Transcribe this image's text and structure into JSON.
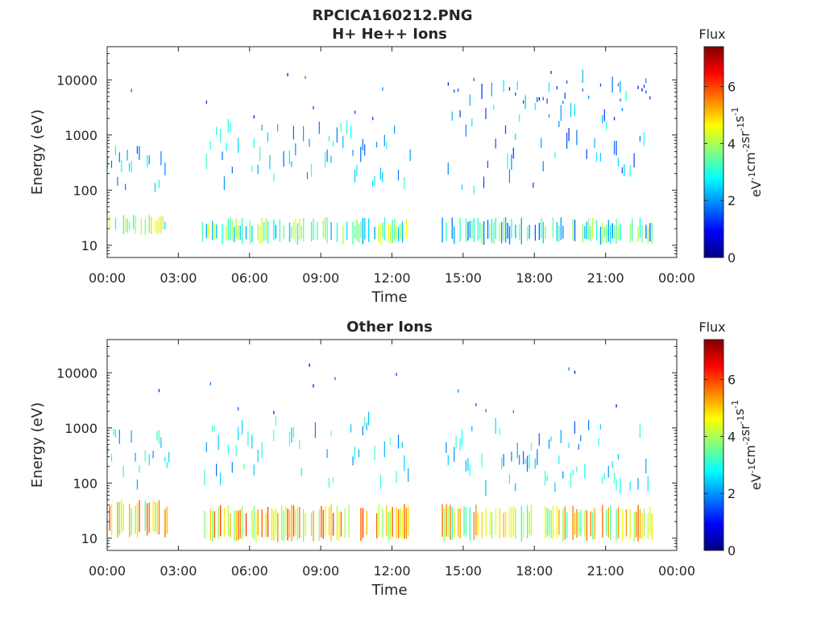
{
  "figure_title": "RPCICA160212.PNG",
  "chart_data": [
    {
      "type": "heatmap",
      "title": "H+ He++ Ions",
      "xlabel": "Time",
      "ylabel": "Energy (eV)",
      "x_ticks": [
        "00:00",
        "03:00",
        "06:00",
        "09:00",
        "12:00",
        "15:00",
        "18:00",
        "21:00",
        "00:00"
      ],
      "x_range_hours": [
        0,
        24
      ],
      "y_scale": "log",
      "y_ticks": [
        "10",
        "100",
        "1000",
        "10000"
      ],
      "y_range": [
        6,
        40000
      ],
      "colorbar": {
        "label": "Flux",
        "units_base": "eV",
        "units_parts": [
          {
            "base": "eV",
            "exp": "-1"
          },
          {
            "base": "cm",
            "exp": "-2"
          },
          {
            "base": "sr",
            "exp": "-1"
          },
          {
            "base": "s",
            "exp": "-1"
          }
        ],
        "ticks": [
          "0",
          "2",
          "4",
          "6"
        ],
        "range": [
          0,
          7.4
        ],
        "colormap": "jet"
      },
      "data_gaps_hours": [
        [
          2.5,
          4.0
        ],
        [
          12.8,
          14.1
        ],
        [
          23.0,
          24.0
        ]
      ],
      "segments": [
        {
          "start": 0.0,
          "end": 2.5,
          "low_e": [
            18,
            33
          ],
          "low_flux": 3.6,
          "mid_e": [
            110,
            600
          ],
          "mid_flux": 2.2,
          "high_density": 0.02
        },
        {
          "start": 4.0,
          "end": 12.8,
          "low_e": [
            12,
            27
          ],
          "low_flux": 3.4,
          "mid_e": [
            120,
            1500
          ],
          "mid_flux": 2.5,
          "high_density": 0.05
        },
        {
          "start": 14.1,
          "end": 23.0,
          "low_e": [
            12,
            27
          ],
          "low_flux": 2.9,
          "mid_e": [
            100,
            12000
          ],
          "mid_flux": 2.1,
          "high_density": 0.2
        }
      ]
    },
    {
      "type": "heatmap",
      "title": "Other Ions",
      "xlabel": "Time",
      "ylabel": "Energy (eV)",
      "x_ticks": [
        "00:00",
        "03:00",
        "06:00",
        "09:00",
        "12:00",
        "15:00",
        "18:00",
        "21:00",
        "00:00"
      ],
      "x_range_hours": [
        0,
        24
      ],
      "y_scale": "log",
      "y_ticks": [
        "10",
        "100",
        "1000",
        "10000"
      ],
      "y_range": [
        6,
        40000
      ],
      "colorbar": {
        "label": "Flux",
        "units_parts": [
          {
            "base": "eV",
            "exp": "-1"
          },
          {
            "base": "cm",
            "exp": "-2"
          },
          {
            "base": "sr",
            "exp": "-1"
          },
          {
            "base": "s",
            "exp": "-1"
          }
        ],
        "ticks": [
          "0",
          "2",
          "4",
          "6"
        ],
        "range": [
          0,
          7.4
        ],
        "colormap": "jet"
      },
      "data_gaps_hours": [
        [
          2.6,
          4.0
        ],
        [
          12.8,
          14.1
        ],
        [
          23.0,
          24.0
        ]
      ],
      "segments": [
        {
          "start": 0.0,
          "end": 2.6,
          "low_e": [
            12,
            42
          ],
          "low_flux": 4.6,
          "mid_e": [
            90,
            900
          ],
          "mid_flux": 2.6,
          "high_density": 0.02
        },
        {
          "start": 4.0,
          "end": 12.8,
          "low_e": [
            10,
            35
          ],
          "low_flux": 4.8,
          "mid_e": [
            80,
            1500
          ],
          "mid_flux": 2.6,
          "high_density": 0.05
        },
        {
          "start": 14.1,
          "end": 23.0,
          "low_e": [
            10,
            35
          ],
          "low_flux": 4.4,
          "mid_e": [
            80,
            1200
          ],
          "mid_flux": 2.4,
          "high_density": 0.03
        }
      ]
    }
  ]
}
